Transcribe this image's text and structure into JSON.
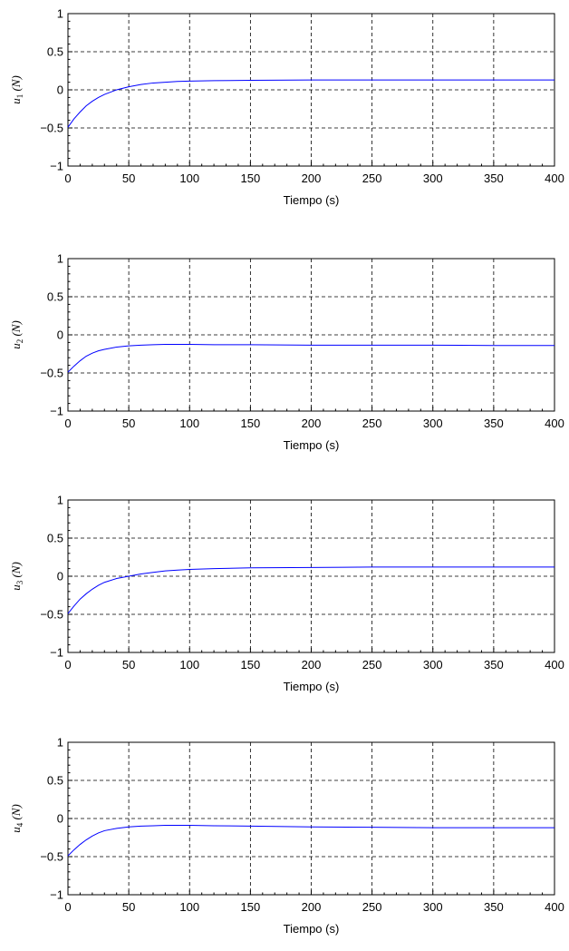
{
  "chart_data": [
    {
      "type": "line",
      "xlabel": "Tiempo (s)",
      "ylabel": {
        "base": "u",
        "sub": "1",
        "unit": " (N)"
      },
      "xlim": [
        0,
        400
      ],
      "ylim": [
        -1,
        1
      ],
      "xticks": [
        "0",
        "50",
        "100",
        "150",
        "200",
        "250",
        "300",
        "350",
        "400"
      ],
      "yticks": [
        "−1",
        "−0.5",
        "0",
        "0.5",
        "1"
      ],
      "grid": true,
      "series": [
        {
          "color": "#0000ff",
          "x": [
            0,
            5,
            10,
            15,
            20,
            25,
            30,
            40,
            50,
            60,
            70,
            80,
            90,
            100,
            120,
            150,
            200,
            250,
            300,
            350,
            400
          ],
          "y": [
            -0.49,
            -0.38,
            -0.29,
            -0.21,
            -0.15,
            -0.1,
            -0.06,
            0.0,
            0.04,
            0.07,
            0.09,
            0.1,
            0.11,
            0.115,
            0.12,
            0.125,
            0.13,
            0.13,
            0.13,
            0.13,
            0.13
          ]
        }
      ]
    },
    {
      "type": "line",
      "xlabel": "Tiempo (s)",
      "ylabel": {
        "base": "u",
        "sub": "2",
        "unit": " (N)"
      },
      "xlim": [
        0,
        400
      ],
      "ylim": [
        -1,
        1
      ],
      "xticks": [
        "0",
        "50",
        "100",
        "150",
        "200",
        "250",
        "300",
        "350",
        "400"
      ],
      "yticks": [
        "−1",
        "−0.5",
        "0",
        "0.5",
        "1"
      ],
      "grid": true,
      "series": [
        {
          "color": "#0000ff",
          "x": [
            0,
            5,
            10,
            15,
            20,
            25,
            30,
            40,
            50,
            60,
            70,
            80,
            90,
            100,
            120,
            150,
            200,
            250,
            300,
            350,
            400
          ],
          "y": [
            -0.49,
            -0.41,
            -0.34,
            -0.28,
            -0.24,
            -0.21,
            -0.19,
            -0.16,
            -0.145,
            -0.135,
            -0.13,
            -0.125,
            -0.125,
            -0.125,
            -0.13,
            -0.13,
            -0.135,
            -0.135,
            -0.135,
            -0.14,
            -0.14
          ]
        }
      ]
    },
    {
      "type": "line",
      "xlabel": "Tiempo (s)",
      "ylabel": {
        "base": "u",
        "sub": "3",
        "unit": " (N)"
      },
      "xlim": [
        0,
        400
      ],
      "ylim": [
        -1,
        1
      ],
      "xticks": [
        "0",
        "50",
        "100",
        "150",
        "200",
        "250",
        "300",
        "350",
        "400"
      ],
      "yticks": [
        "−1",
        "−0.5",
        "0",
        "0.5",
        "1"
      ],
      "grid": true,
      "series": [
        {
          "color": "#0000ff",
          "x": [
            0,
            5,
            10,
            15,
            20,
            25,
            30,
            40,
            50,
            60,
            70,
            80,
            90,
            100,
            120,
            150,
            200,
            250,
            300,
            350,
            400
          ],
          "y": [
            -0.49,
            -0.39,
            -0.3,
            -0.23,
            -0.17,
            -0.12,
            -0.08,
            -0.03,
            0.0,
            0.03,
            0.05,
            0.07,
            0.08,
            0.09,
            0.1,
            0.11,
            0.115,
            0.12,
            0.12,
            0.12,
            0.12
          ]
        }
      ]
    },
    {
      "type": "line",
      "xlabel": "Tiempo (s)",
      "ylabel": {
        "base": "u",
        "sub": "4",
        "unit": " (N)"
      },
      "xlim": [
        0,
        400
      ],
      "ylim": [
        -1,
        1
      ],
      "xticks": [
        "0",
        "50",
        "100",
        "150",
        "200",
        "250",
        "300",
        "350",
        "400"
      ],
      "yticks": [
        "−1",
        "−0.5",
        "0",
        "0.5",
        "1"
      ],
      "grid": true,
      "series": [
        {
          "color": "#0000ff",
          "x": [
            0,
            5,
            10,
            15,
            20,
            25,
            30,
            40,
            50,
            60,
            70,
            80,
            90,
            100,
            120,
            150,
            200,
            250,
            300,
            350,
            400
          ],
          "y": [
            -0.49,
            -0.41,
            -0.34,
            -0.28,
            -0.23,
            -0.19,
            -0.16,
            -0.13,
            -0.11,
            -0.1,
            -0.095,
            -0.09,
            -0.09,
            -0.09,
            -0.095,
            -0.1,
            -0.11,
            -0.115,
            -0.12,
            -0.12,
            -0.12
          ]
        }
      ]
    }
  ]
}
